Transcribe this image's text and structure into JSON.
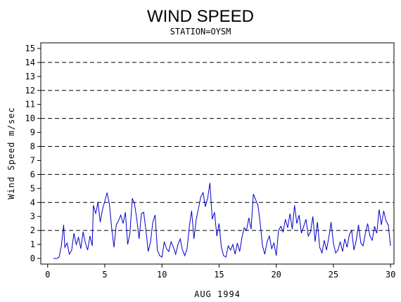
{
  "chart_data": {
    "type": "line",
    "title": "WIND SPEED",
    "subtitle": "STATION=OYSM",
    "xlabel": "AUG 1994",
    "ylabel": "Wind Speed m/sec",
    "xlim": [
      -0.6,
      30.3
    ],
    "ylim": [
      -0.4,
      15.4
    ],
    "xticks": [
      0,
      5,
      10,
      15,
      20,
      25,
      30
    ],
    "yticks": [
      0,
      1,
      2,
      3,
      4,
      5,
      6,
      7,
      8,
      9,
      10,
      11,
      12,
      13,
      14,
      15
    ],
    "reference_lines": [
      2,
      4,
      6,
      8,
      10,
      12,
      14
    ],
    "series": [
      {
        "color": "#0000cc",
        "x": [
          0.5,
          0.8,
          1.0,
          1.2,
          1.4,
          1.5,
          1.7,
          1.9,
          2.1,
          2.3,
          2.5,
          2.7,
          2.9,
          3.1,
          3.3,
          3.5,
          3.7,
          3.9,
          4.0,
          4.2,
          4.4,
          4.6,
          4.8,
          5.0,
          5.2,
          5.4,
          5.6,
          5.8,
          6.0,
          6.2,
          6.4,
          6.6,
          6.8,
          7.0,
          7.2,
          7.4,
          7.6,
          7.8,
          8.0,
          8.2,
          8.4,
          8.6,
          8.8,
          9.0,
          9.2,
          9.4,
          9.6,
          9.8,
          10.0,
          10.2,
          10.4,
          10.6,
          10.8,
          11.0,
          11.2,
          11.4,
          11.6,
          11.8,
          12.0,
          12.2,
          12.4,
          12.6,
          12.8,
          13.0,
          13.2,
          13.4,
          13.6,
          13.8,
          14.0,
          14.2,
          14.4,
          14.6,
          14.8,
          15.0,
          15.2,
          15.4,
          15.6,
          15.8,
          16.0,
          16.2,
          16.4,
          16.6,
          16.8,
          17.0,
          17.2,
          17.4,
          17.6,
          17.8,
          18.0,
          18.2,
          18.4,
          18.6,
          18.8,
          19.0,
          19.2,
          19.4,
          19.6,
          19.8,
          20.0,
          20.2,
          20.4,
          20.6,
          20.8,
          21.0,
          21.2,
          21.4,
          21.6,
          21.8,
          22.0,
          22.2,
          22.4,
          22.6,
          22.8,
          23.0,
          23.2,
          23.4,
          23.6,
          23.8,
          24.0,
          24.2,
          24.4,
          24.6,
          24.8,
          25.0,
          25.2,
          25.4,
          25.6,
          25.8,
          26.0,
          26.2,
          26.4,
          26.6,
          26.8,
          27.0,
          27.2,
          27.4,
          27.6,
          27.8,
          28.0,
          28.2,
          28.4,
          28.6,
          28.8,
          29.0,
          29.2,
          29.4,
          29.6,
          29.8,
          30.0
        ],
        "y": [
          0.0,
          0.0,
          0.1,
          0.9,
          2.4,
          0.8,
          1.1,
          0.3,
          0.6,
          1.8,
          1.0,
          1.5,
          0.7,
          1.9,
          1.1,
          0.6,
          1.6,
          0.9,
          3.8,
          3.2,
          4.0,
          2.6,
          3.5,
          4.1,
          4.7,
          3.9,
          2.2,
          0.8,
          2.4,
          2.7,
          3.1,
          2.5,
          3.3,
          1.0,
          1.8,
          4.3,
          3.9,
          2.8,
          1.4,
          3.2,
          3.3,
          2.0,
          0.5,
          1.2,
          2.6,
          3.1,
          0.6,
          0.2,
          0.1,
          1.2,
          0.7,
          0.5,
          1.2,
          0.8,
          0.3,
          1.0,
          1.4,
          0.6,
          0.2,
          0.7,
          2.3,
          3.4,
          1.4,
          2.8,
          3.6,
          4.4,
          4.7,
          3.7,
          4.3,
          5.4,
          2.8,
          3.3,
          1.6,
          2.5,
          0.8,
          0.2,
          0.1,
          0.9,
          0.6,
          1.0,
          0.3,
          1.1,
          0.5,
          1.5,
          2.2,
          2.0,
          2.9,
          2.1,
          4.6,
          4.2,
          3.8,
          2.5,
          0.9,
          0.3,
          1.2,
          1.6,
          0.7,
          1.1,
          0.2,
          2.0,
          2.3,
          1.9,
          2.8,
          2.2,
          3.2,
          2.1,
          3.8,
          2.5,
          3.1,
          1.8,
          2.3,
          2.8,
          1.6,
          1.9,
          3.0,
          1.2,
          2.6,
          0.8,
          0.4,
          1.3,
          0.6,
          1.5,
          2.6,
          1.1,
          0.4,
          0.6,
          1.2,
          0.5,
          1.4,
          0.8,
          1.7,
          2.0,
          0.6,
          1.3,
          2.4,
          1.1,
          0.9,
          1.8,
          2.5,
          1.6,
          1.3,
          2.3,
          1.8,
          3.5,
          2.4,
          3.4,
          2.7,
          2.4,
          0.9
        ]
      }
    ]
  }
}
